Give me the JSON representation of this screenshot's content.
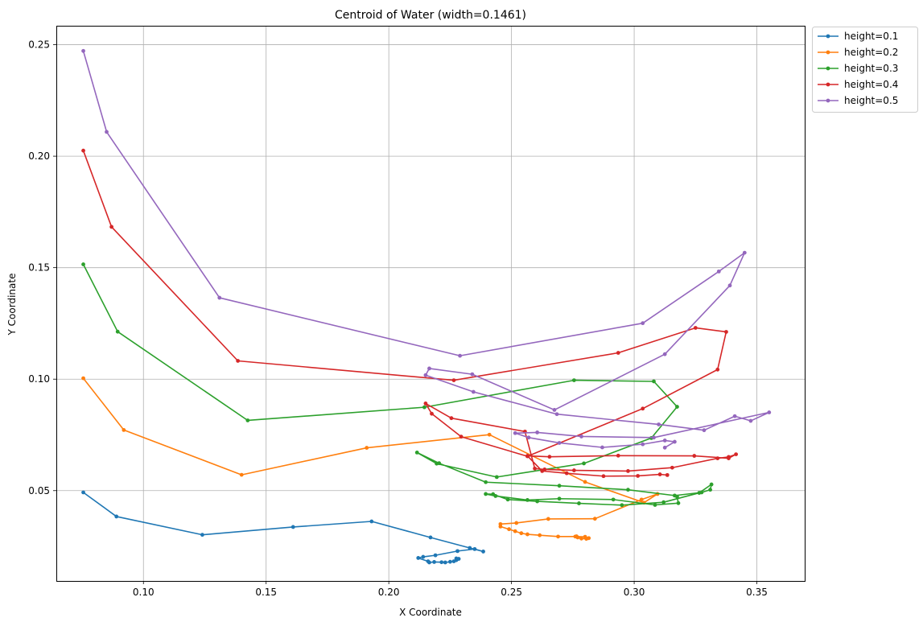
{
  "chart_data": {
    "type": "line",
    "title": "Centroid of Water (width=0.1461)",
    "xlabel": "X Coordinate",
    "ylabel": "Y Coordinate",
    "xlim": [
      0.0645,
      0.3695
    ],
    "ylim": [
      0.0095,
      0.2585
    ],
    "xticks": [
      0.1,
      0.15,
      0.2,
      0.25,
      0.3,
      0.35
    ],
    "yticks": [
      0.05,
      0.1,
      0.15,
      0.2,
      0.25
    ],
    "xtick_labels": [
      "0.10",
      "0.15",
      "0.20",
      "0.25",
      "0.30",
      "0.35"
    ],
    "ytick_labels": [
      "0.05",
      "0.10",
      "0.15",
      "0.20",
      "0.25"
    ],
    "grid": true,
    "legend_position": "outside-top-right",
    "series": [
      {
        "name": "height=0.1",
        "color": "#1f77b4",
        "points": [
          [
            0.0755,
            0.0492
          ],
          [
            0.089,
            0.0384
          ],
          [
            0.124,
            0.0302
          ],
          [
            0.161,
            0.0337
          ],
          [
            0.193,
            0.0362
          ],
          [
            0.217,
            0.029
          ],
          [
            0.233,
            0.0243
          ],
          [
            0.2385,
            0.0227
          ],
          [
            0.235,
            0.0238
          ],
          [
            0.228,
            0.0229
          ],
          [
            0.219,
            0.021
          ],
          [
            0.214,
            0.0203
          ],
          [
            0.212,
            0.0198
          ],
          [
            0.216,
            0.0183
          ],
          [
            0.2165,
            0.0178
          ],
          [
            0.2185,
            0.018
          ],
          [
            0.2215,
            0.0179
          ],
          [
            0.223,
            0.0178
          ],
          [
            0.225,
            0.0181
          ],
          [
            0.2265,
            0.0183
          ],
          [
            0.2275,
            0.0188
          ],
          [
            0.2285,
            0.0194
          ],
          [
            0.2275,
            0.0196
          ]
        ]
      },
      {
        "name": "height=0.2",
        "color": "#ff7f0e",
        "points": [
          [
            0.0755,
            0.1004
          ],
          [
            0.092,
            0.0772
          ],
          [
            0.14,
            0.0571
          ],
          [
            0.191,
            0.0692
          ],
          [
            0.241,
            0.0751
          ],
          [
            0.28,
            0.0539
          ],
          [
            0.304,
            0.0446
          ],
          [
            0.3095,
            0.0485
          ],
          [
            0.303,
            0.046
          ],
          [
            0.284,
            0.0374
          ],
          [
            0.265,
            0.0373
          ],
          [
            0.252,
            0.0355
          ],
          [
            0.2455,
            0.035
          ],
          [
            0.2455,
            0.0339
          ],
          [
            0.249,
            0.0327
          ],
          [
            0.2515,
            0.0318
          ],
          [
            0.254,
            0.0309
          ],
          [
            0.2565,
            0.0304
          ],
          [
            0.2615,
            0.03
          ],
          [
            0.269,
            0.0294
          ],
          [
            0.276,
            0.0294
          ],
          [
            0.28,
            0.0293
          ],
          [
            0.2815,
            0.0287
          ],
          [
            0.2805,
            0.0284
          ],
          [
            0.2785,
            0.0285
          ],
          [
            0.277,
            0.029
          ],
          [
            0.2765,
            0.0295
          ]
        ]
      },
      {
        "name": "height=0.3",
        "color": "#2ca02c",
        "points": [
          [
            0.0755,
            0.1515
          ],
          [
            0.0895,
            0.1213
          ],
          [
            0.1425,
            0.0815
          ],
          [
            0.2145,
            0.0874
          ],
          [
            0.2755,
            0.0995
          ],
          [
            0.308,
            0.099
          ],
          [
            0.3175,
            0.0876
          ],
          [
            0.307,
            0.0736
          ],
          [
            0.2795,
            0.0622
          ],
          [
            0.244,
            0.0561
          ],
          [
            0.2195,
            0.0621
          ],
          [
            0.2115,
            0.0671
          ],
          [
            0.2205,
            0.0623
          ],
          [
            0.2395,
            0.0538
          ],
          [
            0.2695,
            0.0522
          ],
          [
            0.2975,
            0.0504
          ],
          [
            0.3165,
            0.0478
          ],
          [
            0.3275,
            0.0492
          ],
          [
            0.331,
            0.0504
          ],
          [
            0.3315,
            0.0528
          ],
          [
            0.3265,
            0.049
          ],
          [
            0.312,
            0.0448
          ],
          [
            0.295,
            0.0435
          ],
          [
            0.2775,
            0.0443
          ],
          [
            0.2605,
            0.0452
          ],
          [
            0.2485,
            0.046
          ],
          [
            0.2425,
            0.0484
          ],
          [
            0.2395,
            0.0485
          ],
          [
            0.2435,
            0.0476
          ],
          [
            0.2565,
            0.0458
          ],
          [
            0.2695,
            0.0464
          ],
          [
            0.2915,
            0.046
          ],
          [
            0.3085,
            0.0436
          ],
          [
            0.318,
            0.0444
          ],
          [
            0.3175,
            0.0473
          ]
        ]
      },
      {
        "name": "height=0.4",
        "color": "#d62728",
        "points": [
          [
            0.0755,
            0.2025
          ],
          [
            0.087,
            0.1683
          ],
          [
            0.1385,
            0.1082
          ],
          [
            0.2265,
            0.0995
          ],
          [
            0.2935,
            0.1118
          ],
          [
            0.325,
            0.123
          ],
          [
            0.3375,
            0.1212
          ],
          [
            0.334,
            0.1043
          ],
          [
            0.3035,
            0.0868
          ],
          [
            0.2565,
            0.0654
          ],
          [
            0.2295,
            0.0742
          ],
          [
            0.2175,
            0.0845
          ],
          [
            0.215,
            0.0891
          ],
          [
            0.2255,
            0.0825
          ],
          [
            0.2555,
            0.0765
          ],
          [
            0.2595,
            0.0599
          ],
          [
            0.2635,
            0.0595
          ],
          [
            0.2755,
            0.0591
          ],
          [
            0.2975,
            0.0588
          ],
          [
            0.3155,
            0.0603
          ],
          [
            0.334,
            0.0645
          ],
          [
            0.3385,
            0.0651
          ],
          [
            0.3415,
            0.0663
          ],
          [
            0.3385,
            0.0645
          ],
          [
            0.3245,
            0.0656
          ],
          [
            0.2935,
            0.0657
          ],
          [
            0.2655,
            0.0652
          ],
          [
            0.2565,
            0.0656
          ],
          [
            0.2625,
            0.0588
          ],
          [
            0.2725,
            0.0578
          ],
          [
            0.2875,
            0.0565
          ],
          [
            0.3015,
            0.0566
          ],
          [
            0.3105,
            0.0573
          ],
          [
            0.3135,
            0.057
          ]
        ]
      },
      {
        "name": "height=0.5",
        "color": "#9467bd",
        "points": [
          [
            0.0755,
            0.2472
          ],
          [
            0.085,
            0.2109
          ],
          [
            0.131,
            0.1365
          ],
          [
            0.229,
            0.1105
          ],
          [
            0.3035,
            0.1251
          ],
          [
            0.3345,
            0.1483
          ],
          [
            0.345,
            0.1567
          ],
          [
            0.339,
            0.142
          ],
          [
            0.3125,
            0.1112
          ],
          [
            0.2675,
            0.0862
          ],
          [
            0.234,
            0.1022
          ],
          [
            0.2165,
            0.1048
          ],
          [
            0.215,
            0.1018
          ],
          [
            0.2345,
            0.0943
          ],
          [
            0.2685,
            0.0843
          ],
          [
            0.31,
            0.0797
          ],
          [
            0.3285,
            0.0771
          ],
          [
            0.341,
            0.0834
          ],
          [
            0.3475,
            0.0813
          ],
          [
            0.355,
            0.0851
          ],
          [
            0.308,
            0.0738
          ],
          [
            0.2785,
            0.0743
          ],
          [
            0.2605,
            0.0761
          ],
          [
            0.2515,
            0.0758
          ],
          [
            0.257,
            0.0738
          ],
          [
            0.2695,
            0.0714
          ],
          [
            0.287,
            0.0694
          ],
          [
            0.3035,
            0.0708
          ],
          [
            0.3125,
            0.0725
          ],
          [
            0.3165,
            0.0719
          ],
          [
            0.3125,
            0.0693
          ]
        ]
      }
    ]
  }
}
